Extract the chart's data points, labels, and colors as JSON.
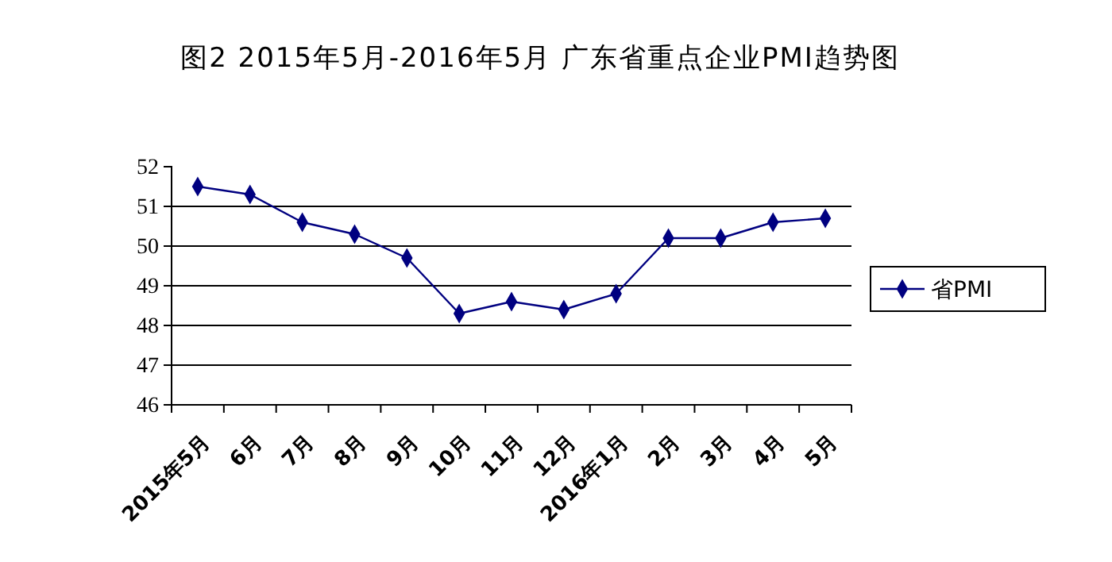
{
  "chart_data": {
    "type": "line",
    "title": "图2  2015年5月-2016年5月  广东省重点企业PMI趋势图",
    "categories": [
      "2015年5月",
      "6月",
      "7月",
      "8月",
      "9月",
      "10月",
      "11月",
      "12月",
      "2016年1月",
      "2月",
      "3月",
      "4月",
      "5月"
    ],
    "series": [
      {
        "name": "省PMI",
        "color": "#000080",
        "values": [
          51.5,
          51.3,
          50.6,
          50.3,
          49.7,
          48.3,
          48.6,
          48.4,
          48.8,
          50.2,
          50.2,
          50.6,
          50.7
        ]
      }
    ],
    "ylim": [
      46,
      52
    ],
    "yticks": [
      46,
      47,
      48,
      49,
      50,
      51,
      52
    ],
    "grid": "y",
    "legend": "right",
    "marker": "diamond"
  }
}
